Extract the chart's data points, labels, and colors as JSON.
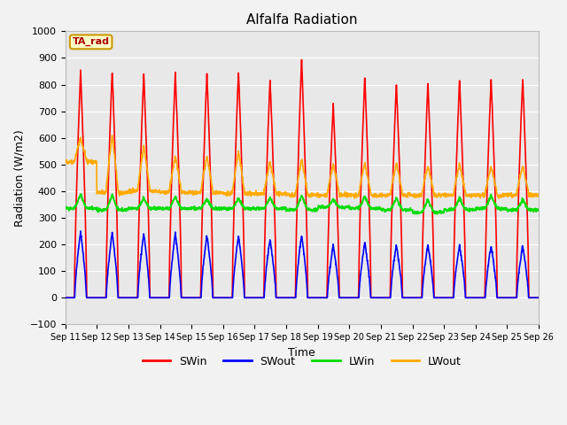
{
  "title": "Alfalfa Radiation",
  "xlabel": "Time",
  "ylabel": "Radiation (W/m2)",
  "ylim": [
    -100,
    1000
  ],
  "yticks": [
    -100,
    0,
    100,
    200,
    300,
    400,
    500,
    600,
    700,
    800,
    900,
    1000
  ],
  "background_color": "#e8e8e8",
  "grid_color": "#ffffff",
  "legend_label": "TA_rad",
  "x_tick_labels": [
    "Sep 11",
    "Sep 12",
    "Sep 13",
    "Sep 14",
    "Sep 15",
    "Sep 16",
    "Sep 17",
    "Sep 18",
    "Sep 19",
    "Sep 20",
    "Sep 21",
    "Sep 22",
    "Sep 23",
    "Sep 24",
    "Sep 25",
    "Sep 26"
  ],
  "series": {
    "SWin": {
      "color": "#ff0000",
      "linewidth": 1.2
    },
    "SWout": {
      "color": "#0000ff",
      "linewidth": 1.2
    },
    "LWin": {
      "color": "#00dd00",
      "linewidth": 1.2
    },
    "LWout": {
      "color": "#ffaa00",
      "linewidth": 1.2
    }
  },
  "SWin_peaks": [
    855,
    850,
    845,
    845,
    840,
    850,
    820,
    900,
    725,
    830,
    805,
    810,
    820,
    820,
    825
  ],
  "SWout_peaks": [
    248,
    245,
    242,
    242,
    235,
    235,
    220,
    235,
    197,
    207,
    200,
    200,
    198,
    195,
    195
  ],
  "LWin_base": [
    335,
    330,
    335,
    335,
    335,
    335,
    335,
    330,
    340,
    335,
    330,
    320,
    330,
    335,
    330
  ],
  "LWin_peak": [
    390,
    385,
    375,
    380,
    370,
    375,
    375,
    385,
    370,
    380,
    375,
    370,
    375,
    385,
    370
  ],
  "LWout_night": [
    510,
    395,
    400,
    395,
    395,
    390,
    390,
    385,
    385,
    385,
    385,
    385,
    385,
    385,
    385
  ],
  "LWout_peak": [
    600,
    610,
    570,
    530,
    530,
    550,
    510,
    520,
    500,
    505,
    505,
    495,
    500,
    495,
    495
  ],
  "n_days": 15,
  "pts_per_day": 144
}
